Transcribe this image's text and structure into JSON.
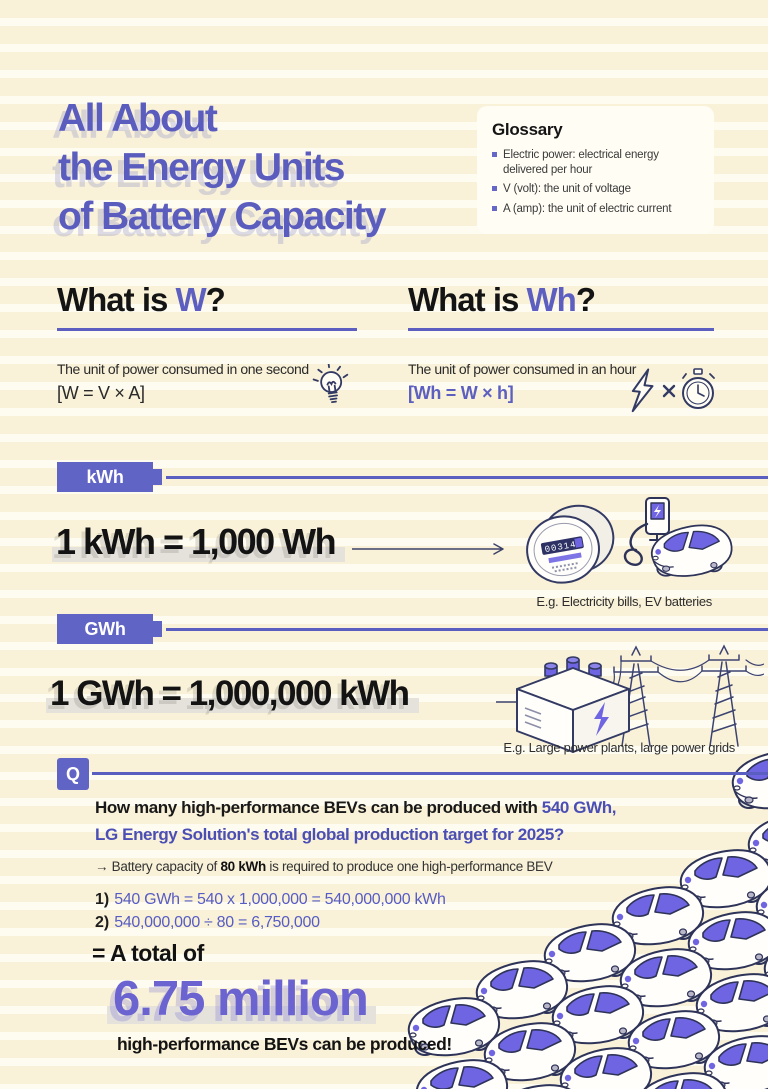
{
  "colors": {
    "background": "#f9f2d9",
    "accent_purple": "#5c5fc0",
    "badge_purple": "#6064c4",
    "navy_outline": "#333a63",
    "car_window_purple": "#6f65e2",
    "highlight_gray": "#e5e2dc"
  },
  "icons": {
    "tip": "lightbulb-icon",
    "wh_formula": "lightning-times-stopwatch-icon",
    "kwh_examples": "power-meter-icon, ev-charging-icon",
    "gwh_examples": "ess-battery-icon, power-grid-icon",
    "answer": "car-pattern"
  },
  "title": {
    "lines": [
      "All About",
      "the Energy Units",
      "of Battery Capacity"
    ]
  },
  "glossary": {
    "title": "Glossary",
    "items": [
      "Electric power: electrical energy delivered per hour",
      "V (volt): the unit of voltage",
      "A (amp): the unit of electric current"
    ]
  },
  "sections": {
    "w": {
      "prefix": "What is ",
      "unit": "W",
      "suffix": "?",
      "desc": "The unit of power consumed in one second",
      "formula": "[W = V × A]"
    },
    "wh": {
      "prefix": "What is ",
      "unit": "Wh",
      "suffix": "?",
      "desc": "The unit of power consumed in an hour",
      "formula": "[Wh = W × h]"
    }
  },
  "kwh": {
    "badge": "kWh",
    "equation": "1 kWh = 1,000 Wh",
    "example": "E.g. Electricity bills, EV batteries"
  },
  "gwh": {
    "badge": "GWh",
    "equation": "1 GWh = 1,000,000 kWh",
    "example": "E.g. Large power plants, large power grids"
  },
  "meter_digits": "00314",
  "question": {
    "badge": "Q",
    "line1_black": "How many high-performance BEVs can be produced with ",
    "line1_highlight": "540 GWh,",
    "line2": "LG Energy Solution's total global production target for 2025?",
    "note_prefix": "→ Battery capacity of ",
    "note_bold": "80 kWh",
    "note_suffix": " is required to produce one high-performance BEV",
    "steps": [
      {
        "num": "1)",
        "text": "540 GWh = 540 x 1,000,000 = 540,000,000 kWh"
      },
      {
        "num": "2)",
        "text": "540,000,000 ÷ 80 = 6,750,000"
      }
    ],
    "total_label": "=  A total of",
    "total_value": "6.75 million",
    "total_suffix": "high-performance BEVs can be produced!"
  }
}
